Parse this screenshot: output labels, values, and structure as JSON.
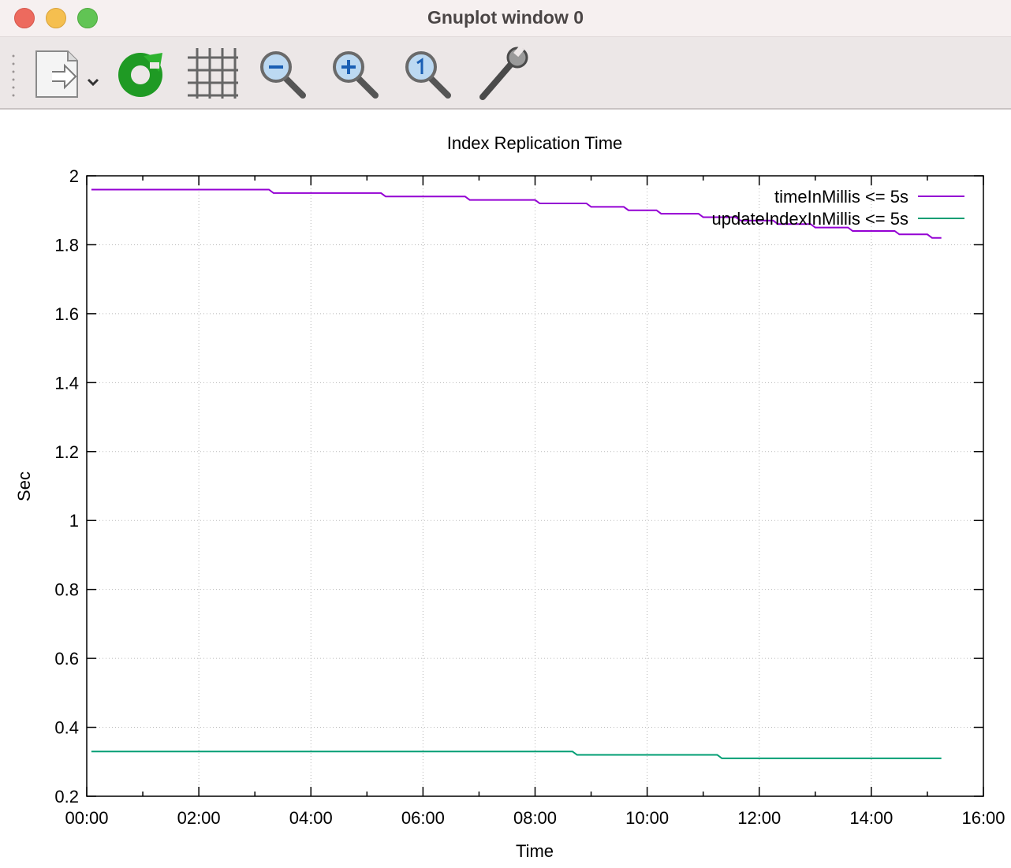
{
  "window": {
    "title": "Gnuplot window 0"
  },
  "toolbar": {
    "items": [
      {
        "name": "export-icon"
      },
      {
        "name": "replot-icon"
      },
      {
        "name": "grid-icon"
      },
      {
        "name": "zoom-out-icon"
      },
      {
        "name": "zoom-in-icon"
      },
      {
        "name": "zoom-reset-icon"
      },
      {
        "name": "settings-wrench-icon"
      }
    ]
  },
  "chart_data": {
    "type": "line",
    "title": "Index Replication Time",
    "xlabel": "Time",
    "ylabel": "Sec",
    "xlim": [
      "00:00",
      "16:00"
    ],
    "ylim": [
      0.2,
      2
    ],
    "x_ticks": [
      "00:00",
      "02:00",
      "04:00",
      "06:00",
      "08:00",
      "10:00",
      "12:00",
      "14:00",
      "16:00"
    ],
    "y_ticks": [
      "0.2",
      "0.4",
      "0.6",
      "0.8",
      "1",
      "1.2",
      "1.4",
      "1.6",
      "1.8",
      "2"
    ],
    "grid": true,
    "legend_position": "top-right",
    "series": [
      {
        "name": "timeInMillis <= 5s",
        "color": "#9400d3",
        "x": [
          "00:05",
          "03:15",
          "03:20",
          "05:15",
          "05:20",
          "06:45",
          "06:50",
          "08:00",
          "08:05",
          "08:55",
          "09:00",
          "09:35",
          "09:40",
          "10:10",
          "10:15",
          "10:55",
          "11:00",
          "11:35",
          "11:40",
          "12:15",
          "12:20",
          "12:55",
          "13:00",
          "13:35",
          "13:40",
          "14:25",
          "14:30",
          "15:00",
          "15:05",
          "15:15"
        ],
        "values": [
          1.96,
          1.96,
          1.95,
          1.95,
          1.94,
          1.94,
          1.93,
          1.93,
          1.92,
          1.92,
          1.91,
          1.91,
          1.9,
          1.9,
          1.89,
          1.89,
          1.88,
          1.88,
          1.87,
          1.87,
          1.86,
          1.86,
          1.85,
          1.85,
          1.84,
          1.84,
          1.83,
          1.83,
          1.82,
          1.82
        ]
      },
      {
        "name": "updateIndexInMillis <= 5s",
        "color": "#009e73",
        "x": [
          "00:05",
          "08:40",
          "08:45",
          "11:15",
          "11:20",
          "15:15"
        ],
        "values": [
          0.33,
          0.33,
          0.32,
          0.32,
          0.31,
          0.31
        ]
      }
    ]
  }
}
